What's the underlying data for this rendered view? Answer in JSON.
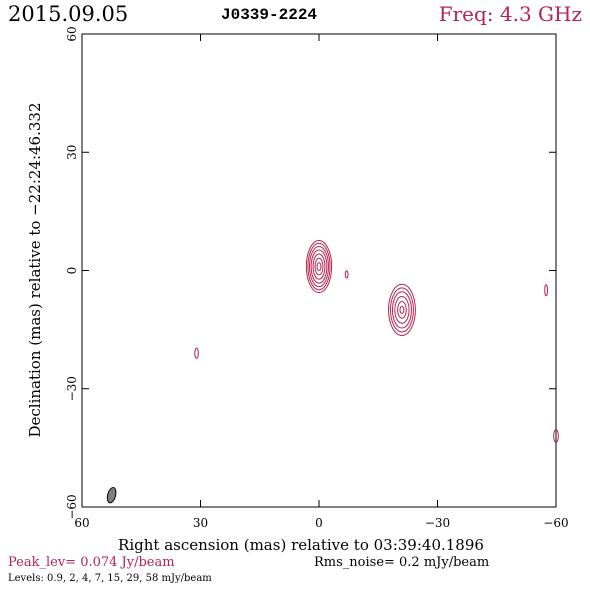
{
  "header": {
    "date": "2015.09.05",
    "source": "J0339-2224",
    "freq": "Freq: 4.3 GHz"
  },
  "footer": {
    "peak": "Peak_lev=  0.074 Jy/beam",
    "rms": "Rms_noise=  0.2 mJy/beam",
    "levels": "Levels: 0.9,   2,   4,   7,  15,  29,  58 mJy/beam"
  },
  "colors": {
    "contour": "#b5234f",
    "axis": "#000000",
    "beam": "#7f7f7f",
    "accent": "#b5234f"
  },
  "chart_data": {
    "type": "contour",
    "xlabel": "Right ascension (mas) relative to 03:39:40.1896",
    "ylabel": "Declination (mas) relative to −22:24:46.332",
    "xlim": [
      60,
      -60
    ],
    "ylim": [
      -60,
      60
    ],
    "xticks": [
      60,
      30,
      0,
      -30,
      -60
    ],
    "yticks": [
      60,
      30,
      0,
      -30,
      -60
    ],
    "xtick_labels": [
      "60",
      "30",
      "0",
      "−30",
      "−60"
    ],
    "ytick_labels": [
      "60",
      "30",
      "0",
      "−30",
      "−60"
    ],
    "grid": false,
    "levels_mJy": [
      0.9,
      2,
      4,
      7,
      15,
      29,
      58
    ],
    "components": [
      {
        "ra": 0,
        "dec": 1,
        "contours": [
          {
            "rx": 3.2,
            "ry": 6.6
          },
          {
            "rx": 2.8,
            "ry": 5.9
          },
          {
            "rx": 2.4,
            "ry": 5.1
          },
          {
            "rx": 2.0,
            "ry": 4.2
          },
          {
            "rx": 1.5,
            "ry": 3.2
          },
          {
            "rx": 1.0,
            "ry": 2.1
          },
          {
            "rx": 0.5,
            "ry": 1.0
          }
        ]
      },
      {
        "ra": -21,
        "dec": -10,
        "contours": [
          {
            "rx": 3.4,
            "ry": 6.5
          },
          {
            "rx": 2.9,
            "ry": 5.6
          },
          {
            "rx": 2.4,
            "ry": 4.6
          },
          {
            "rx": 1.8,
            "ry": 3.4
          },
          {
            "rx": 1.1,
            "ry": 2.1
          },
          {
            "rx": 0.5,
            "ry": 0.9
          }
        ]
      },
      {
        "ra": -7,
        "dec": -1,
        "contours": [
          {
            "rx": 0.35,
            "ry": 0.9
          }
        ]
      },
      {
        "ra": 31,
        "dec": -21,
        "contours": [
          {
            "rx": 0.45,
            "ry": 1.3
          }
        ]
      },
      {
        "ra": -57.5,
        "dec": -5,
        "contours": [
          {
            "rx": 0.35,
            "ry": 1.4
          }
        ]
      },
      {
        "ra": -60,
        "dec": -42,
        "contours": [
          {
            "rx": 0.6,
            "ry": 1.6
          }
        ]
      }
    ],
    "beam": {
      "ra": 52.5,
      "dec": -57,
      "major_mas": 4.0,
      "minor_mas": 2.0,
      "pa_deg": 15
    }
  }
}
